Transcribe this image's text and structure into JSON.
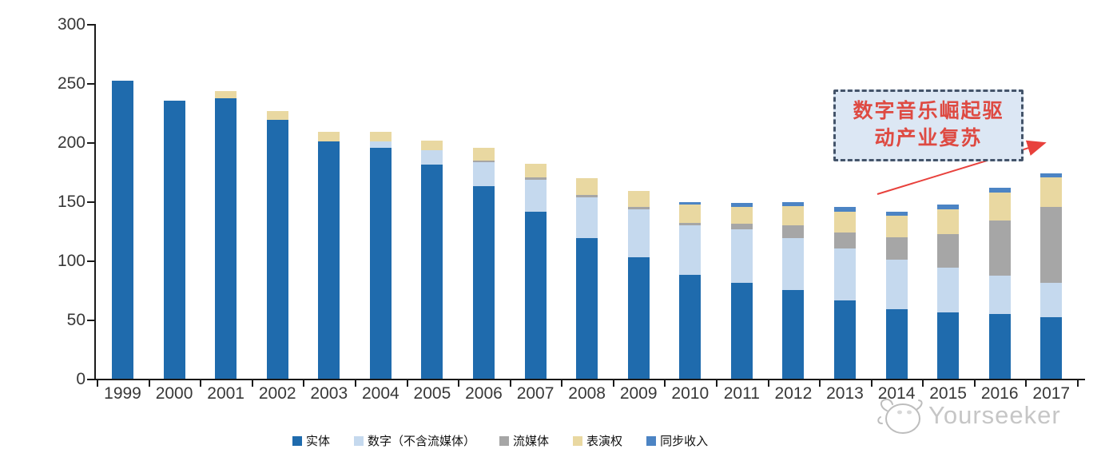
{
  "chart_data": {
    "type": "bar",
    "stacked": true,
    "title": "",
    "xlabel": "",
    "ylabel": "",
    "categories": [
      "1999",
      "2000",
      "2001",
      "2002",
      "2003",
      "2004",
      "2005",
      "2006",
      "2007",
      "2008",
      "2009",
      "2010",
      "2011",
      "2012",
      "2013",
      "2014",
      "2015",
      "2016",
      "2017"
    ],
    "series": [
      {
        "name": "实体",
        "color": "#1F6BAD",
        "values": [
          252,
          235,
          237,
          219,
          201,
          195,
          181,
          163,
          141,
          119,
          103,
          88,
          81,
          75,
          66,
          59,
          56,
          55,
          52
        ]
      },
      {
        "name": "数字（不含流媒体）",
        "color": "#C5D9EE",
        "values": [
          0,
          0,
          0,
          0,
          0,
          5.5,
          12.5,
          20,
          27.5,
          34.5,
          40,
          41.5,
          45.5,
          44,
          44,
          41.5,
          38,
          32,
          29
        ]
      },
      {
        "name": "流媒体",
        "color": "#A6A6A6",
        "values": [
          0,
          0,
          0,
          0,
          0,
          0,
          0,
          1.5,
          1.5,
          2,
          2.5,
          2.5,
          4.5,
          10.5,
          13.5,
          19,
          28,
          46.5,
          64
        ]
      },
      {
        "name": "表演权",
        "color": "#E9D8A1",
        "values": [
          0,
          0,
          6.5,
          7.5,
          8,
          8,
          8,
          11,
          12,
          14,
          13.5,
          15,
          14.5,
          16.5,
          18,
          18.5,
          21.5,
          24,
          25
        ]
      },
      {
        "name": "同步收入",
        "color": "#4C84C4",
        "values": [
          0,
          0,
          0,
          0,
          0,
          0,
          0,
          0,
          0,
          0,
          0,
          2.5,
          3,
          3.5,
          3.5,
          3.5,
          4,
          4,
          3.5
        ]
      }
    ],
    "ylim": [
      0,
      300
    ],
    "yticks": [
      0,
      50,
      100,
      150,
      200,
      250,
      300
    ],
    "grid": false,
    "legend_position": "bottom"
  },
  "annotation": {
    "line1": "数字音乐崛起驱",
    "line2": "动产业复苏",
    "box_fill": "#DCE7F4",
    "border_color": "#44546A",
    "text_color": "#DE4A42",
    "arrow_color": "#E8413C"
  },
  "watermark": {
    "text": "Yourseeker",
    "logo": "yourseeker-animal-face"
  }
}
